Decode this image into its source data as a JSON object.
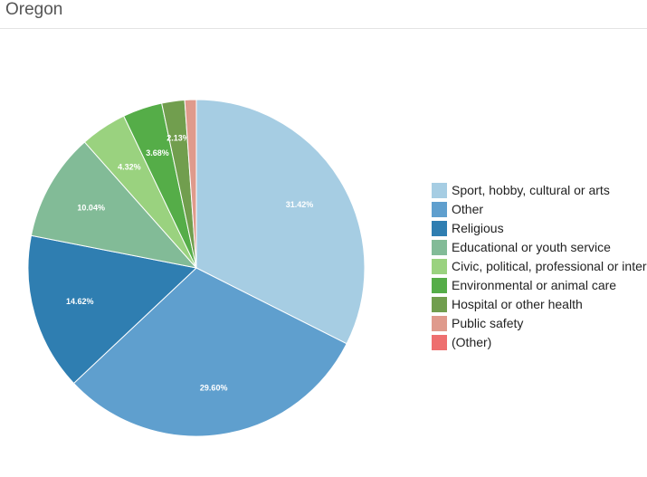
{
  "page": {
    "title": "Oregon"
  },
  "chart_data": {
    "type": "pie",
    "slices": [
      {
        "label": "Sport, hobby, cultural or arts",
        "value": 31.42,
        "display": "31.42%",
        "color": "#a6cde3"
      },
      {
        "label": "Other",
        "value": 29.6,
        "display": "29.60%",
        "color": "#5f9fce"
      },
      {
        "label": "Religious",
        "value": 14.62,
        "display": "14.62%",
        "color": "#2f7eb1"
      },
      {
        "label": "Educational or youth service",
        "value": 10.04,
        "display": "10.04%",
        "color": "#82bb97"
      },
      {
        "label": "Civic, political, professional or internat",
        "value": 4.32,
        "display": "4.32%",
        "color": "#9ad27f"
      },
      {
        "label": "Environmental or animal care",
        "value": 3.68,
        "display": "3.68%",
        "color": "#55ad48"
      },
      {
        "label": "Hospital or other health",
        "value": 2.13,
        "display": "2.13%",
        "color": "#719e4e"
      },
      {
        "label": "Public safety",
        "value": 1.07,
        "display": "",
        "color": "#df9a8c"
      },
      {
        "label": "(Other)",
        "value": 0,
        "display": "",
        "color": "#ee6f6f"
      }
    ],
    "start": "12 o'clock",
    "direction": "clockwise",
    "legend_position": "right"
  }
}
